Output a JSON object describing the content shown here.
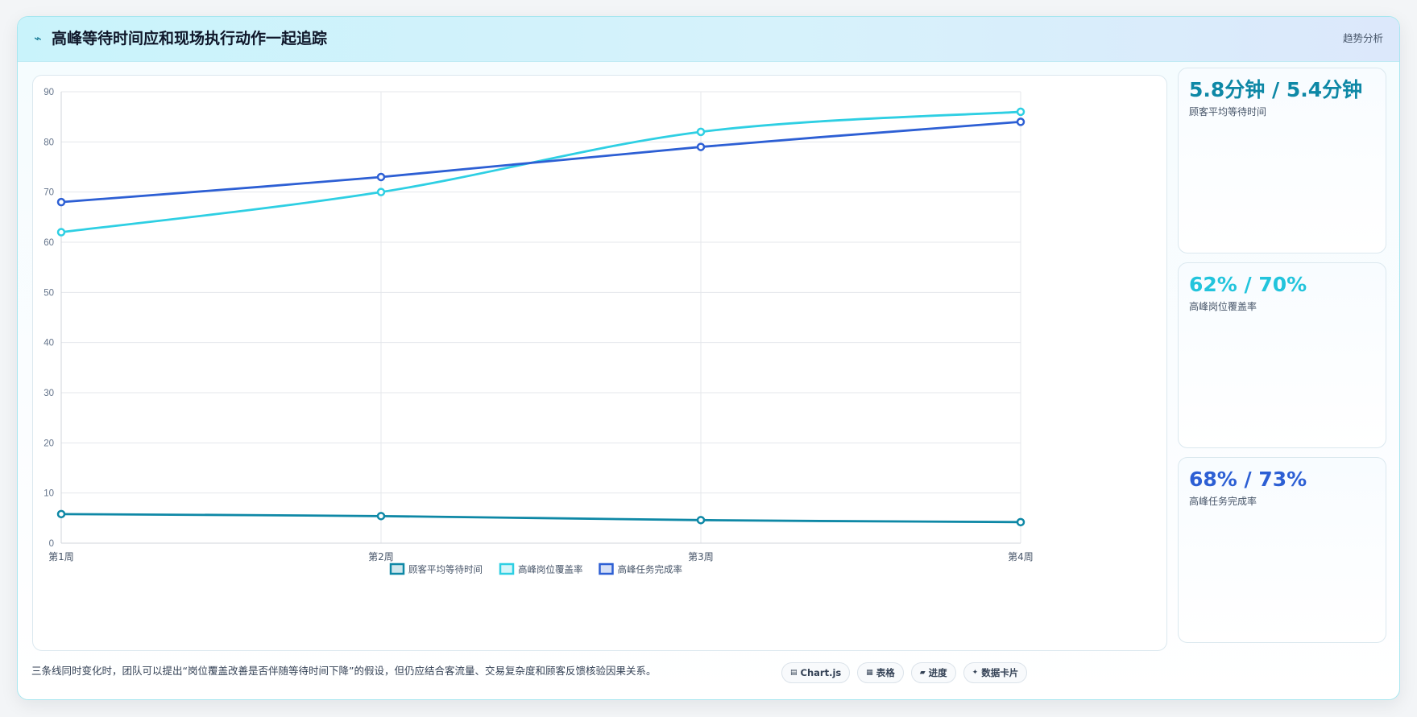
{
  "header": {
    "icon": "⌁",
    "title": "高峰等待时间应和现场执行动作一起追踪",
    "badge": "趋势分析"
  },
  "stats": [
    {
      "value": "5.8分钟 / 5.4分钟",
      "label": "顾客平均等待时间",
      "color": "#0e88a6"
    },
    {
      "value": "62% / 70%",
      "label": "高峰岗位覆盖率",
      "color": "#22c4dc"
    },
    {
      "value": "68% / 73%",
      "label": "高峰任务完成率",
      "color": "#2d5fd4"
    }
  ],
  "footer": {
    "text": "三条线同时变化时，团队可以提出“岗位覆盖改善是否伴随等待时间下降”的假设，但仍应结合客流量、交易复杂度和顾客反馈核验因果关系。",
    "chips": [
      {
        "icon": "▤",
        "label": "Chart.js"
      },
      {
        "icon": "▦",
        "label": "表格"
      },
      {
        "icon": "▰",
        "label": "进度"
      },
      {
        "icon": "✦",
        "label": "数据卡片"
      }
    ]
  },
  "chart_data": {
    "type": "line",
    "categories": [
      "第1周",
      "第2周",
      "第3周",
      "第4周"
    ],
    "ylim": [
      0,
      90
    ],
    "yticks": [
      0,
      10,
      20,
      30,
      40,
      50,
      60,
      70,
      80,
      90
    ],
    "grid": true,
    "legend": "bottom",
    "series": [
      {
        "name": "顾客平均等待时间",
        "values": [
          5.8,
          5.4,
          4.6,
          4.2
        ],
        "color": "#0e88a6"
      },
      {
        "name": "高峰岗位覆盖率",
        "values": [
          62,
          70,
          82,
          86
        ],
        "color": "#2ecfe3"
      },
      {
        "name": "高峰任务完成率",
        "values": [
          68,
          73,
          79,
          84
        ],
        "color": "#2d5fd4"
      }
    ]
  }
}
